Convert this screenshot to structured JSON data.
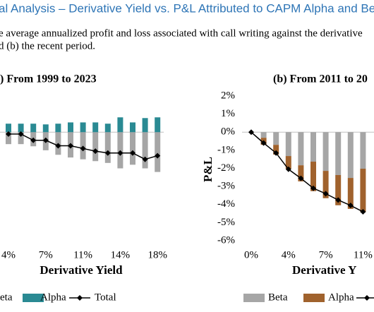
{
  "header": {
    "title": "al Analysis – Derivative Yield vs. P&L Attributed to CAPM Alpha and Bet",
    "subtitle": [
      "e average annualized profit and loss associated with call writing against the derivative",
      "d (b) the recent period."
    ]
  },
  "chart_data": [
    {
      "type": "bar",
      "stacked": true,
      "title": ") From 1999 to 2023",
      "x_label": "Derivative Yield",
      "categories": [
        "4%",
        null,
        null,
        "7%",
        null,
        null,
        "11%",
        null,
        null,
        "14%",
        null,
        null,
        "18%"
      ],
      "ylim": [
        -6,
        2
      ],
      "series": [
        {
          "name": "eta",
          "color": "#a6a6a6",
          "values": [
            -0.66,
            -0.66,
            -0.78,
            -1.0,
            -1.25,
            -1.4,
            -1.5,
            -1.6,
            -1.7,
            -2.0,
            -1.8,
            -2.0,
            -2.2
          ]
        },
        {
          "name": "Alpha",
          "color": "#2a8a93",
          "values": [
            0.47,
            0.47,
            0.47,
            0.43,
            0.47,
            0.54,
            0.54,
            0.54,
            0.47,
            0.82,
            0.54,
            0.78,
            0.82
          ]
        },
        {
          "name": "Total",
          "color": "#000000",
          "type": "line",
          "values": [
            -0.1,
            -0.1,
            -0.45,
            -0.45,
            -0.75,
            -0.75,
            -0.9,
            -1.05,
            -1.15,
            -1.15,
            -1.15,
            -1.5,
            -1.3
          ]
        }
      ]
    },
    {
      "type": "bar",
      "stacked": true,
      "title": "(b) From 2011 to 20",
      "x_label": "Derivative Y",
      "y_label": "P&L",
      "categories": [
        "0%",
        null,
        null,
        "4%",
        null,
        null,
        "7%",
        null,
        null,
        "11%"
      ],
      "ylim": [
        -6,
        2
      ],
      "yticks": [
        {
          "value": 2,
          "label": "2%"
        },
        {
          "value": 1,
          "label": "1%"
        },
        {
          "value": 0,
          "label": "0%"
        },
        {
          "value": -1,
          "label": "-1%"
        },
        {
          "value": -2,
          "label": "-2%"
        },
        {
          "value": -3,
          "label": "-3%"
        },
        {
          "value": -4,
          "label": "-4%"
        },
        {
          "value": -5,
          "label": "-5%"
        },
        {
          "value": -6,
          "label": "-6%"
        }
      ],
      "series": [
        {
          "name": "Beta",
          "color": "#a6a6a6",
          "values": [
            0,
            -0.31,
            -0.7,
            -1.32,
            -1.83,
            -1.63,
            -2.14,
            -2.37,
            -2.53,
            -2.02
          ]
        },
        {
          "name": "Alpha",
          "color": "#a0622d",
          "values": [
            0,
            -0.39,
            -0.54,
            -0.7,
            -0.89,
            -1.63,
            -1.51,
            -1.67,
            -1.71,
            -2.41
          ]
        },
        {
          "color": "#000000",
          "type": "line",
          "values": [
            0,
            -0.6,
            -1.15,
            -2.05,
            -2.55,
            -3.1,
            -3.4,
            -3.75,
            -4.05,
            -4.4
          ]
        }
      ]
    }
  ]
}
